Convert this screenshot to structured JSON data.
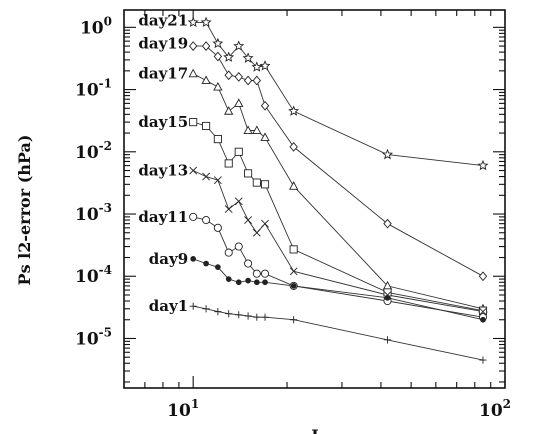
{
  "chart_data": {
    "type": "line",
    "title": "",
    "xlabel": "I",
    "ylabel": "Ps l2-error (hPa)",
    "xscale": "log",
    "yscale": "log",
    "xlim": [
      6,
      100
    ],
    "ylim": [
      1.6e-06,
      1.9
    ],
    "grid": false,
    "legend": "inline labels at left of each curve",
    "x_ticks": [
      {
        "value": 10,
        "base": "10",
        "exp": "1"
      },
      {
        "value": 100,
        "base": "10",
        "exp": "2"
      }
    ],
    "y_ticks": [
      {
        "value": 1,
        "base": "10",
        "exp": "0"
      },
      {
        "value": 0.1,
        "base": "10",
        "exp": "-1"
      },
      {
        "value": 0.01,
        "base": "10",
        "exp": "-2"
      },
      {
        "value": 0.001,
        "base": "10",
        "exp": "-3"
      },
      {
        "value": 0.0001,
        "base": "10",
        "exp": "-4"
      },
      {
        "value": 1e-05,
        "base": "10",
        "exp": "-5"
      }
    ],
    "series": [
      {
        "name": "day21",
        "marker": "star",
        "label_at": 1.3,
        "x": [
          10,
          11,
          12,
          13,
          14,
          15,
          16,
          17,
          21,
          42,
          85
        ],
        "y": [
          1.2,
          1.2,
          0.55,
          0.33,
          0.5,
          0.32,
          0.23,
          0.24,
          0.045,
          0.009,
          0.006
        ]
      },
      {
        "name": "day19",
        "marker": "diamond",
        "label_at": 0.55,
        "x": [
          10,
          11,
          12,
          13,
          14,
          15,
          16,
          17,
          21,
          42,
          85
        ],
        "y": [
          0.5,
          0.5,
          0.34,
          0.17,
          0.16,
          0.14,
          0.14,
          0.055,
          0.012,
          0.0007,
          0.0001
        ]
      },
      {
        "name": "day17",
        "marker": "triangle",
        "label_at": 0.18,
        "x": [
          10,
          11,
          12,
          13,
          14,
          15,
          16,
          17,
          21,
          42,
          85
        ],
        "y": [
          0.18,
          0.14,
          0.11,
          0.045,
          0.06,
          0.022,
          0.022,
          0.017,
          0.0028,
          7e-05,
          3e-05
        ]
      },
      {
        "name": "day15",
        "marker": "square",
        "label_at": 0.03,
        "x": [
          10,
          11,
          12,
          13,
          14,
          15,
          16,
          17,
          21,
          42,
          85
        ],
        "y": [
          0.03,
          0.026,
          0.016,
          0.0065,
          0.01,
          0.0045,
          0.0032,
          0.003,
          0.00027,
          5.5e-05,
          2.8e-05
        ]
      },
      {
        "name": "day13",
        "marker": "cross",
        "label_at": 0.005,
        "x": [
          10,
          11,
          12,
          13,
          14,
          15,
          16,
          17,
          21,
          42,
          85
        ],
        "y": [
          0.005,
          0.004,
          0.0035,
          0.0012,
          0.0016,
          0.0008,
          0.0005,
          0.0007,
          0.00012,
          5e-05,
          2.7e-05
        ]
      },
      {
        "name": "day11",
        "marker": "circle",
        "label_at": 0.0009,
        "x": [
          10,
          11,
          12,
          13,
          14,
          15,
          16,
          17,
          21,
          42,
          85
        ],
        "y": [
          0.0009,
          0.0008,
          0.0006,
          0.00024,
          0.0003,
          0.00016,
          0.00011,
          0.00011,
          7e-05,
          4e-05,
          2.2e-05
        ]
      },
      {
        "name": "day9",
        "marker": "dot",
        "label_at": 0.00019,
        "x": [
          10,
          11,
          12,
          13,
          14,
          15,
          16,
          17,
          21,
          42,
          85
        ],
        "y": [
          0.00019,
          0.00016,
          0.00014,
          9e-05,
          8e-05,
          8.5e-05,
          8e-05,
          8e-05,
          7e-05,
          4.5e-05,
          2e-05
        ]
      },
      {
        "name": "day1",
        "marker": "plus",
        "label_at": 3.3e-05,
        "x": [
          10,
          11,
          12,
          13,
          14,
          15,
          16,
          17,
          21,
          42,
          85
        ],
        "y": [
          3.3e-05,
          3e-05,
          2.7e-05,
          2.5e-05,
          2.4e-05,
          2.3e-05,
          2.2e-05,
          2.2e-05,
          2e-05,
          9.5e-06,
          4.5e-06
        ]
      }
    ]
  }
}
